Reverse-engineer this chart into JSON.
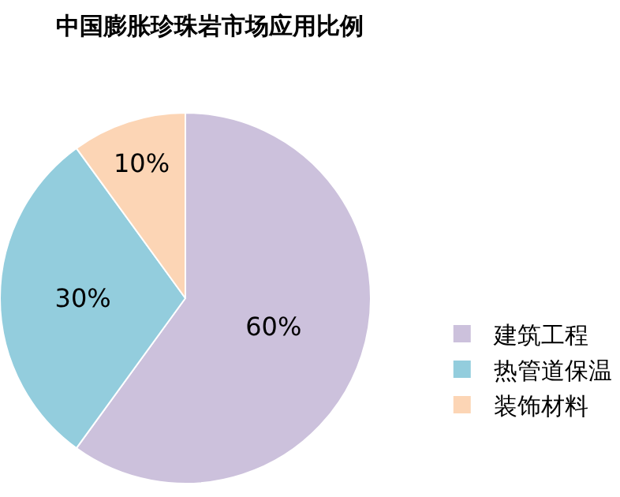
{
  "chart_data": {
    "type": "pie",
    "title": "中国膨胀珍珠岩市场应用比例",
    "categories": [
      "建筑工程",
      "热管道保温",
      "装饰材料"
    ],
    "values": [
      60,
      30,
      10
    ],
    "value_labels": [
      "60%",
      "30%",
      "10%"
    ],
    "colors": [
      "#ccc1dc",
      "#93cddd",
      "#fcd5b5"
    ],
    "legend": "bottom right"
  }
}
